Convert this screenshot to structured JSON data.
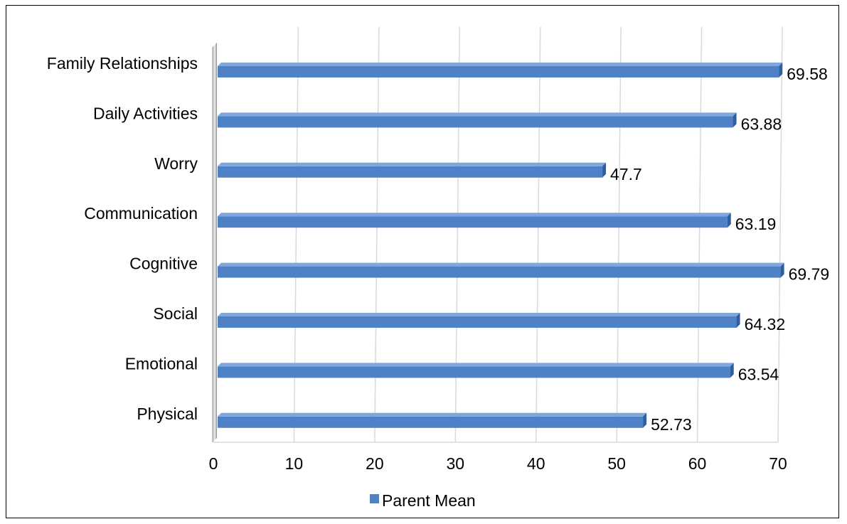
{
  "chart_data": {
    "type": "bar",
    "orientation": "horizontal",
    "categories": [
      "Family Relationships",
      "Daily Activities",
      "Worry",
      "Communication",
      "Cognitive",
      "Social",
      "Emotional",
      "Physical"
    ],
    "series": [
      {
        "name": "Parent Mean",
        "values": [
          69.58,
          63.88,
          47.7,
          63.19,
          69.79,
          64.32,
          63.54,
          52.73
        ]
      }
    ],
    "data_labels": [
      "69.58",
      "63.88",
      "47.7",
      "63.19",
      "69.79",
      "64.32",
      "63.54",
      "52.73"
    ],
    "xlim": [
      0,
      70
    ],
    "xticks": [
      0,
      10,
      20,
      30,
      40,
      50,
      60,
      70
    ],
    "grid": "vertical",
    "legend": "bottom",
    "colors": {
      "bar": "#4f81c7",
      "bar_top": "#7fa7dc",
      "bar_side": "#2f5e9e",
      "grid": "#d9d9d9"
    }
  }
}
